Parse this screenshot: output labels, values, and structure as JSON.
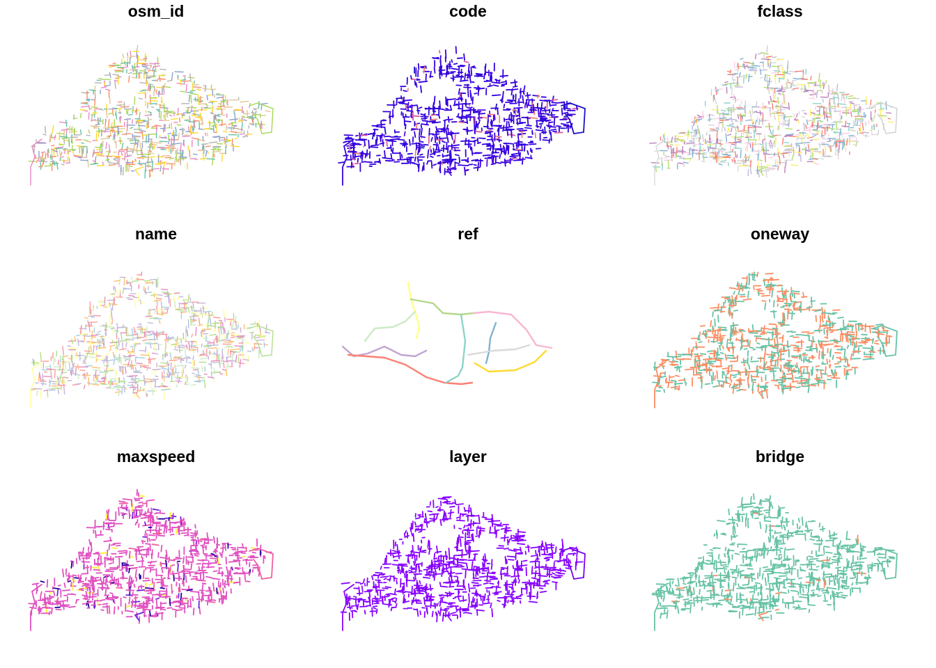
{
  "panels": [
    {
      "title": "osm_id",
      "style": "multi",
      "palette": [
        "#e78ac3",
        "#a6d854",
        "#ffd92f",
        "#66c2a5",
        "#8da0cb",
        "#fc8d62",
        "#e5c494",
        "#b3b3b3"
      ]
    },
    {
      "title": "code",
      "style": "dense",
      "palette": [
        "#3300dd",
        "#1a10c8",
        "#5a10e0",
        "#e05aa0",
        "#f08080"
      ]
    },
    {
      "title": "fclass",
      "style": "multi",
      "palette": [
        "#d9d9d9",
        "#cfcfcf",
        "#b3de69",
        "#bebada",
        "#80b1d3",
        "#fccde5",
        "#ffed6f",
        "#bc80bd",
        "#fb8072",
        "#8dd3c7"
      ]
    },
    {
      "title": "name",
      "style": "multi",
      "palette": [
        "#ffff99",
        "#b2df8a",
        "#fdbf6f",
        "#cab2d6",
        "#a6cee3",
        "#fb9a99",
        "#bebada",
        "#ccebc5",
        "#e78ac3"
      ]
    },
    {
      "title": "ref",
      "style": "ref",
      "palette": [
        "#ffff88",
        "#b5d88a",
        "#ccebc5",
        "#c2a5cf",
        "#fb8072",
        "#8dd3c7",
        "#f7b6d2",
        "#80b1d3",
        "#d9d9d9",
        "#ffd92f"
      ]
    },
    {
      "title": "oneway",
      "style": "two",
      "palette": [
        "#fc8d62",
        "#66c2a5"
      ]
    },
    {
      "title": "maxspeed",
      "style": "dense",
      "palette": [
        "#e050c0",
        "#f060a0",
        "#7020e0",
        "#2000a0",
        "#ffee33"
      ]
    },
    {
      "title": "layer",
      "style": "dense",
      "palette": [
        "#8800ff",
        "#7a00f0",
        "#8a10ff"
      ]
    },
    {
      "title": "bridge",
      "style": "two",
      "palette": [
        "#66c2a5",
        "#66c2a5",
        "#fc8d62"
      ]
    }
  ]
}
